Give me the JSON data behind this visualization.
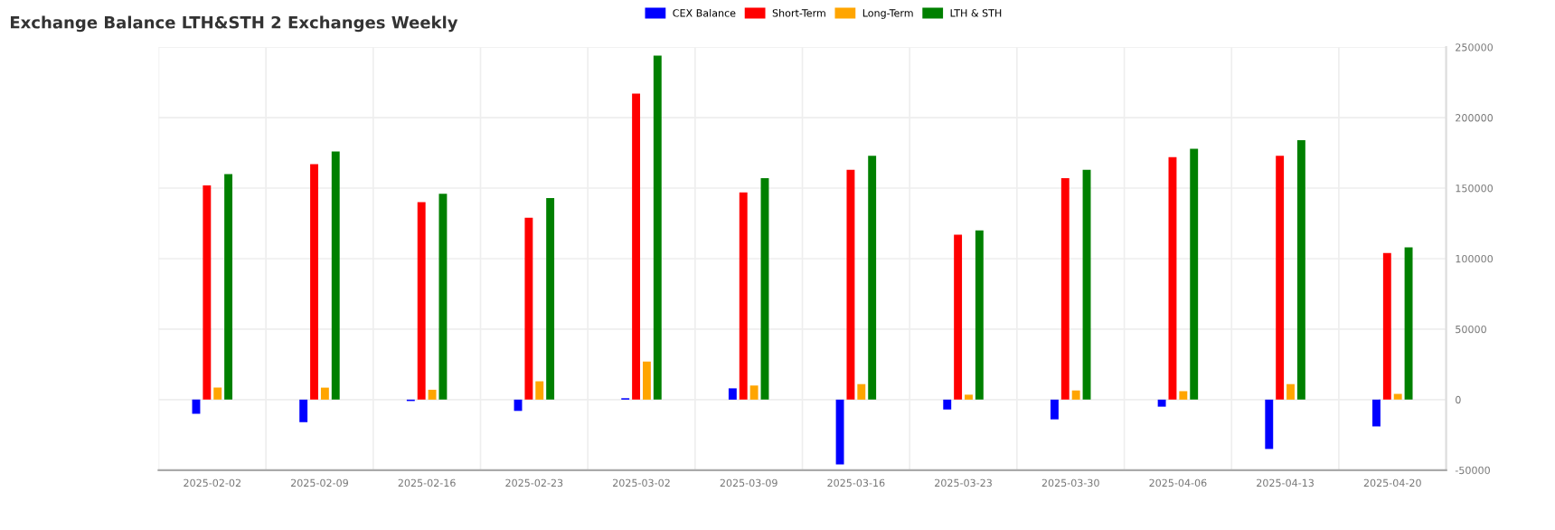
{
  "chart_data": {
    "type": "bar",
    "title": "Exchange Balance LTH&STH 2 Exchanges Weekly",
    "categories": [
      "2025-02-02",
      "2025-02-09",
      "2025-02-16",
      "2025-02-23",
      "2025-03-02",
      "2025-03-09",
      "2025-03-16",
      "2025-03-23",
      "2025-03-30",
      "2025-04-06",
      "2025-04-13",
      "2025-04-20"
    ],
    "series": [
      {
        "name": "CEX Balance",
        "color": "#0000ff",
        "values": [
          -10000,
          -16000,
          -1000,
          -8000,
          1000,
          8000,
          -46000,
          -7000,
          -14000,
          -5000,
          -35000,
          -19000
        ]
      },
      {
        "name": "Short-Term",
        "color": "#ff0000",
        "values": [
          152000,
          167000,
          140000,
          129000,
          217000,
          147000,
          163000,
          117000,
          157000,
          172000,
          173000,
          104000
        ]
      },
      {
        "name": "Long-Term",
        "color": "#ffa500",
        "values": [
          8500,
          8500,
          7000,
          13000,
          27000,
          10000,
          11000,
          3500,
          6500,
          6000,
          11000,
          4000
        ]
      },
      {
        "name": "LTH & STH",
        "color": "#008000",
        "values": [
          160000,
          176000,
          146000,
          143000,
          244000,
          157000,
          173000,
          120000,
          163000,
          178000,
          184000,
          108000
        ]
      }
    ],
    "ylim": [
      -50000,
      250000
    ],
    "yticks": [
      -50000,
      0,
      50000,
      100000,
      150000,
      200000,
      250000
    ],
    "grid": true,
    "legend": "top"
  }
}
